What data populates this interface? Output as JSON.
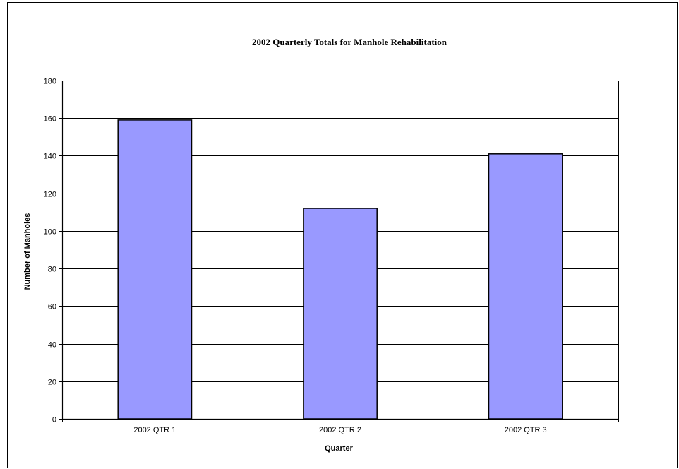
{
  "chart_data": {
    "type": "bar",
    "title": "2002 Quarterly Totals for Manhole Rehabilitation",
    "xlabel": "Quarter",
    "ylabel": "Number of Manholes",
    "categories": [
      "2002 QTR 1",
      "2002 QTR 2",
      "2002 QTR 3"
    ],
    "values": [
      159,
      112,
      141
    ],
    "ylim": [
      0,
      180
    ],
    "yticks": [
      0,
      20,
      40,
      60,
      80,
      100,
      120,
      140,
      160,
      180
    ],
    "grid": true,
    "legend": "none",
    "colors": {
      "bar_fill": "#9999ff",
      "bar_stroke": "#000000",
      "gridline": "#000000",
      "axis": "#000000",
      "background": "#ffffff"
    }
  }
}
